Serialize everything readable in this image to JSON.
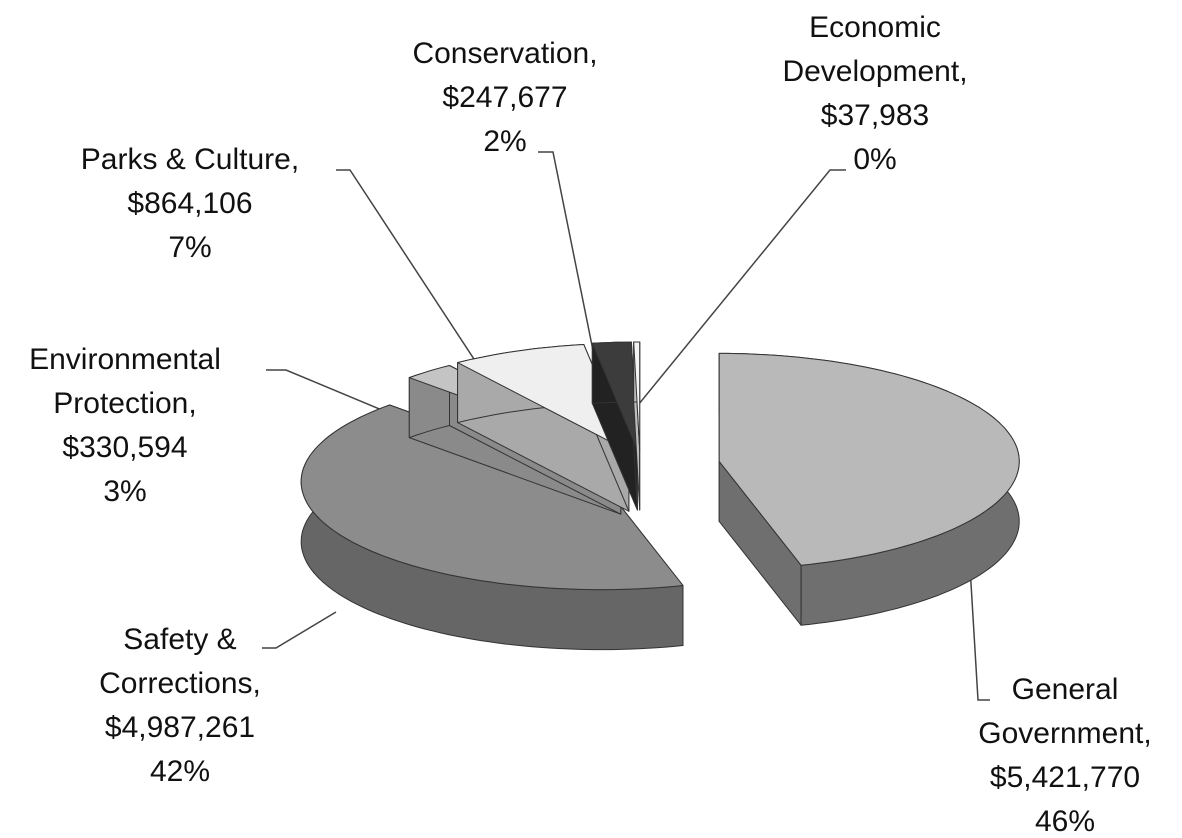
{
  "chart_data": {
    "type": "pie",
    "categories": [
      "General Government,",
      "Safety & Corrections,",
      "Environmental Protection,",
      "Parks & Culture,",
      "Conservation,",
      "Economic Development,"
    ],
    "values": [
      5421770,
      4987261,
      330594,
      864106,
      247677,
      37983
    ],
    "value_labels": [
      "$5,421,770",
      "$4,987,261",
      "$330,594",
      "$864,106",
      "$247,677",
      "$37,983"
    ],
    "percents": [
      46,
      42,
      3,
      7,
      2,
      0
    ],
    "percent_labels": [
      "46%",
      "42%",
      "3%",
      "7%",
      "2%",
      "0%"
    ],
    "colors": [
      "#b9b9b9",
      "#8c8c8c",
      "#c4c4c4",
      "#efefef",
      "#3c3c3c",
      "#f4f4f4"
    ],
    "side_colors": [
      "#6f6f6f",
      "#666666",
      "#8a8a8a",
      "#a9a9a9",
      "#222222",
      "#bdbdbd"
    ]
  }
}
